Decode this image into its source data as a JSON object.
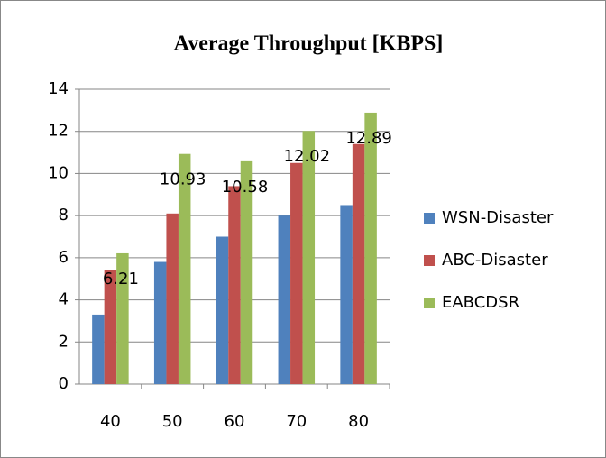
{
  "chart_data": {
    "type": "bar",
    "title": "Average Throughput [KBPS]",
    "categories": [
      "40",
      "50",
      "60",
      "70",
      "80"
    ],
    "series": [
      {
        "name": "WSN-Disaster",
        "color": "#4f81bd",
        "values": [
          3.3,
          5.8,
          7.0,
          8.0,
          8.5
        ]
      },
      {
        "name": "ABC-Disaster",
        "color": "#c0504d",
        "values": [
          5.4,
          8.1,
          9.4,
          10.5,
          11.4
        ]
      },
      {
        "name": "EABCDSR",
        "color": "#9bbb59",
        "values": [
          6.21,
          10.93,
          10.58,
          12.02,
          12.89
        ],
        "data_labels": true
      }
    ],
    "ylim": [
      0,
      14
    ],
    "yticks": [
      0,
      2,
      4,
      6,
      8,
      10,
      12,
      14
    ],
    "grid": true,
    "legend": "right"
  }
}
